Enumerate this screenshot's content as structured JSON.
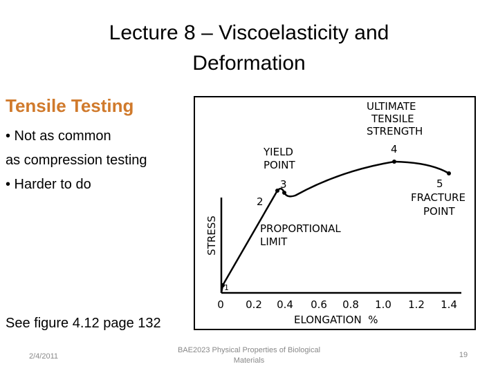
{
  "slide": {
    "title_line1": "Lecture 8 – Viscoelasticity and",
    "title_line2": "Deformation",
    "subtitle": "Tensile Testing",
    "bullets": [
      "• Not as common",
      "as compression testing",
      "• Harder to do"
    ],
    "figure_ref": "See figure 4.12 page 132"
  },
  "footer": {
    "date": "2/4/2011",
    "course_line1": "BAE2023 Physical Properties of Biological",
    "course_line2": "Materials",
    "page": "19"
  },
  "colors": {
    "subtitle": "#d07a2c",
    "footer_text": "#888888"
  },
  "figure": {
    "x_axis_label": "ELONGATION  %",
    "y_axis_label": "STRESS",
    "x_ticks": [
      "0",
      "0.2",
      "0.4",
      "0.6",
      "0.8",
      "1.0",
      "1.2",
      "1.4"
    ],
    "labels": {
      "uts_line1": "ULTIMATE",
      "uts_line2": "TENSILE",
      "uts_line3": "STRENGTH",
      "yield_line1": "YIELD",
      "yield_line2": "POINT",
      "fracture_line1": "FRACTURE",
      "fracture_line2": "POINT",
      "prop_line1": "PROPORTIONAL",
      "prop_line2": "LIMIT"
    },
    "point_numbers": [
      "1",
      "2",
      "3",
      "4",
      "5"
    ]
  }
}
